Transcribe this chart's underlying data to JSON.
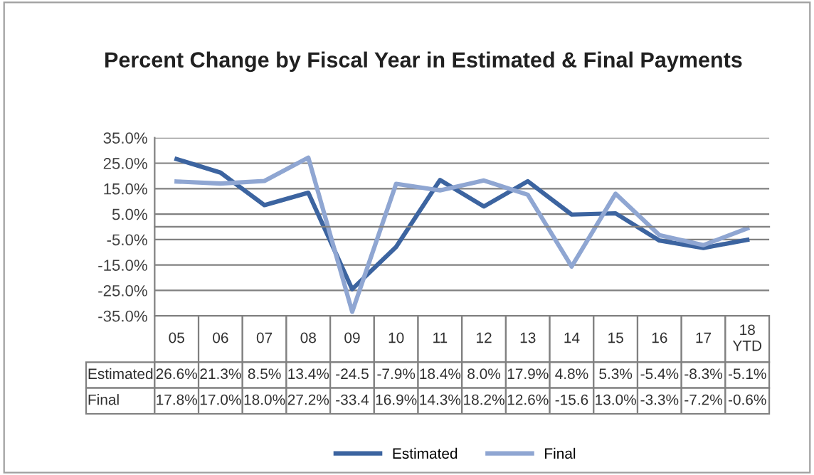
{
  "chart_data": {
    "type": "line",
    "title": "Percent Change by Fiscal Year in Estimated & Final Payments",
    "categories": [
      "05",
      "06",
      "07",
      "08",
      "09",
      "10",
      "11",
      "12",
      "13",
      "14",
      "15",
      "16",
      "17",
      "18\nYTD"
    ],
    "series": [
      {
        "name": "Estimated",
        "color": "#3c64a0",
        "values": [
          26.6,
          21.3,
          8.5,
          13.4,
          -24.5,
          -7.9,
          18.4,
          8.0,
          17.9,
          4.8,
          5.3,
          -5.4,
          -8.3,
          -5.1
        ],
        "value_labels": [
          "26.6%",
          "21.3%",
          "8.5%",
          "13.4%",
          "-24.5",
          "-7.9%",
          "18.4%",
          "8.0%",
          "17.9%",
          "4.8%",
          "5.3%",
          "-5.4%",
          "-8.3%",
          "-5.1%"
        ]
      },
      {
        "name": "Final",
        "color": "#8fa6d2",
        "values": [
          17.8,
          17.0,
          18.0,
          27.2,
          -33.4,
          16.9,
          14.3,
          18.2,
          12.6,
          -15.6,
          13.0,
          -3.3,
          -7.2,
          -0.6
        ],
        "value_labels": [
          "17.8%",
          "17.0%",
          "18.0%",
          "27.2%",
          "-33.4",
          "16.9%",
          "14.3%",
          "18.2%",
          "12.6%",
          "-15.6",
          "13.0%",
          "-3.3%",
          "-7.2%",
          "-0.6%"
        ]
      }
    ],
    "ylim": [
      -35,
      35
    ],
    "yticks": [
      {
        "value": -35,
        "label": "-35.0%"
      },
      {
        "value": -25,
        "label": "-25.0%"
      },
      {
        "value": -15,
        "label": "-15.0%"
      },
      {
        "value": -5,
        "label": "-5.0%"
      },
      {
        "value": 5,
        "label": "5.0%"
      },
      {
        "value": 15,
        "label": "15.0%"
      },
      {
        "value": 25,
        "label": "25.0%"
      },
      {
        "value": 35,
        "label": "35.0%"
      }
    ],
    "grid": "y",
    "legend": "bottom",
    "marker": "none",
    "line_style": "solid",
    "tick_labels": "y"
  }
}
